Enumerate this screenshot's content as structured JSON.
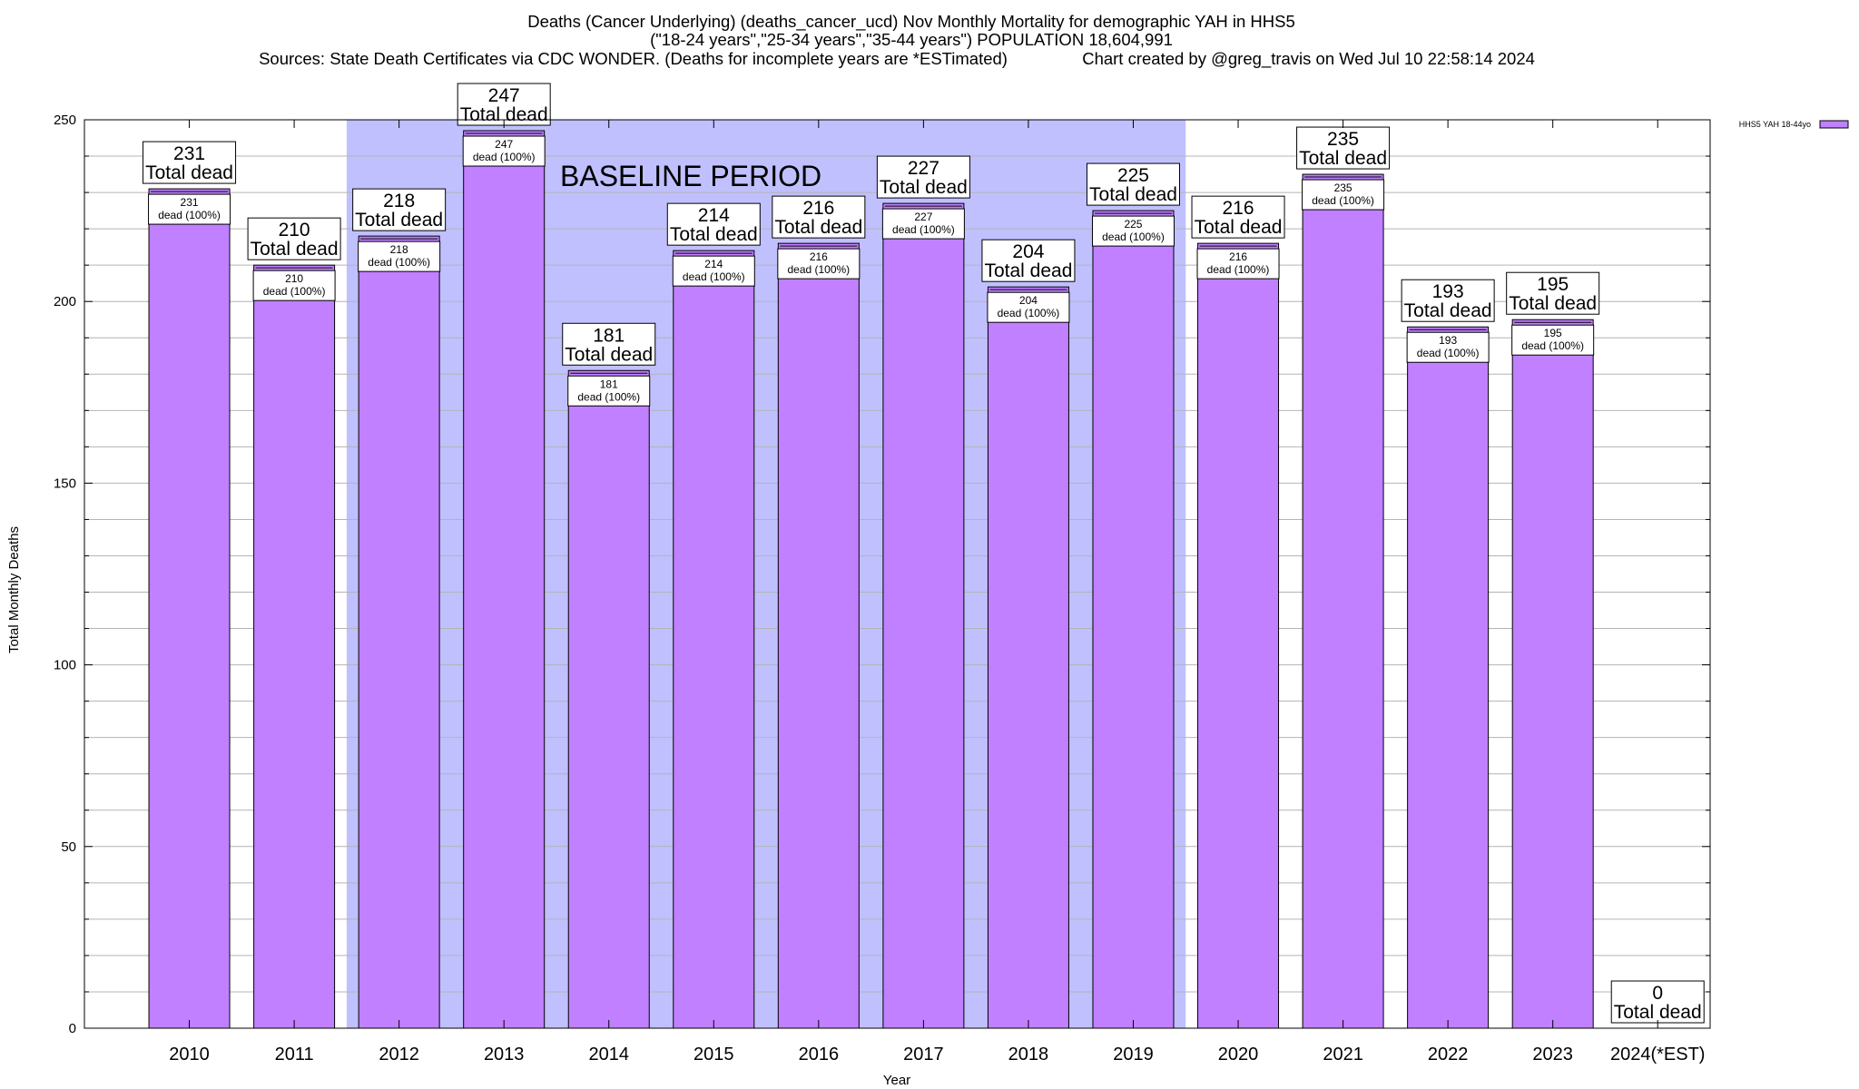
{
  "chart_data": {
    "type": "bar",
    "title_lines": [
      "Deaths (Cancer Underlying) (deaths_cancer_ucd) Nov Monthly Mortality for demographic YAH in HHS5",
      "(\"18-24 years\",\"25-34 years\",\"35-44 years\") POPULATION 18,604,991",
      "Sources: State Death Certificates via CDC WONDER. (Deaths for incomplete years are *ESTimated)                Chart created by @greg_travis on Wed Jul 10 22:58:14 2024"
    ],
    "xlabel": "Year",
    "ylabel": "Total Monthly Deaths",
    "ylim": [
      0,
      250
    ],
    "yticks": [
      "0",
      "50",
      "100",
      "150",
      "200",
      "250"
    ],
    "grid": true,
    "categories": [
      "2010",
      "2011",
      "2012",
      "2013",
      "2014",
      "2015",
      "2016",
      "2017",
      "2018",
      "2019",
      "2020",
      "2021",
      "2022",
      "2023",
      "2024(*EST)"
    ],
    "series": [
      {
        "name": "HHS5 YAH 18-44yo",
        "values": [
          231,
          210,
          218,
          247,
          181,
          214,
          216,
          227,
          204,
          225,
          216,
          235,
          193,
          195,
          0
        ],
        "color": "#c080ff"
      }
    ],
    "total_labels": [
      "231",
      "210",
      "218",
      "247",
      "181",
      "214",
      "216",
      "227",
      "204",
      "225",
      "216",
      "235",
      "193",
      "195",
      "0"
    ],
    "total_suffix": "Total dead",
    "inner_labels": [
      "231",
      "210",
      "218",
      "247",
      "181",
      "214",
      "216",
      "227",
      "204",
      "225",
      "216",
      "235",
      "193",
      "195"
    ],
    "inner_suffix": "dead (100%)",
    "baseline": {
      "label": "BASELINE PERIOD",
      "from": "2012",
      "to": "2019",
      "color": "#c0c0ff"
    },
    "legend_position": "top-right"
  }
}
